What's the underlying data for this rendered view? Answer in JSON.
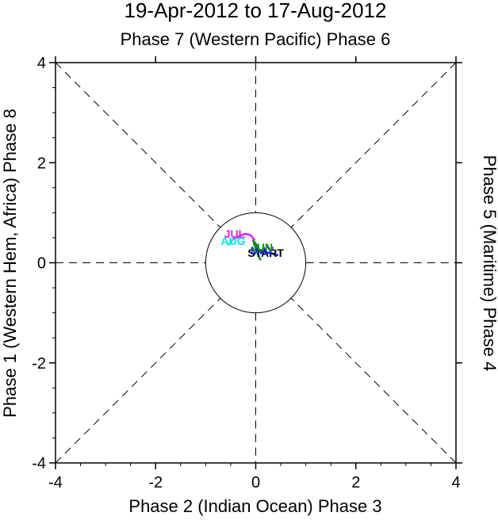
{
  "chart_data": {
    "type": "line",
    "title": "19-Apr-2012 to 17-Aug-2012",
    "top_label": "Phase 7 (Western Pacific) Phase 6",
    "bottom_label": "Phase 2 (Indian Ocean) Phase 3",
    "left_label": "Phase 1 (Western Hem, Africa) Phase 8",
    "right_label": "Phase 5 (Maritime) Phase 4",
    "xlim": [
      -4,
      4
    ],
    "ylim": [
      -4,
      4
    ],
    "x_ticks": [
      -4,
      -2,
      0,
      2,
      4
    ],
    "y_ticks": [
      -4,
      -2,
      0,
      2,
      4
    ],
    "x_tick_labels": [
      "-4",
      "-2",
      "0",
      "2",
      "4"
    ],
    "y_tick_labels": [
      "-4",
      "-2",
      "0",
      "2",
      "4"
    ],
    "unit_circle_radius": 1,
    "grid": "dashed phase-boundary lines",
    "series": [
      {
        "color": "#1a1aff",
        "x": [
          0.45,
          0.35,
          0.25,
          0.15,
          0.1
        ],
        "y": [
          0.15,
          0.18,
          0.2,
          0.22,
          0.2
        ]
      },
      {
        "color": "#0a8a0a",
        "x": [
          0.1,
          0.05,
          0.0,
          -0.05,
          -0.02,
          0.05,
          0.1
        ],
        "y": [
          0.2,
          0.3,
          0.38,
          0.45,
          0.35,
          0.15,
          0.05
        ]
      },
      {
        "color": "#e020e0",
        "x": [
          -0.02,
          -0.1,
          -0.2,
          -0.3,
          -0.38,
          -0.45
        ],
        "y": [
          0.45,
          0.55,
          0.58,
          0.55,
          0.5,
          0.48
        ]
      },
      {
        "color": "#00e5ee",
        "x": [
          -0.45,
          -0.5,
          -0.55
        ],
        "y": [
          0.48,
          0.4,
          0.35
        ]
      }
    ],
    "annotations": [
      {
        "text": "START",
        "x": 0.2,
        "y": 0.12,
        "color": "#000000"
      },
      {
        "text": "MAY",
        "x": 0.13,
        "y": 0.17,
        "color": "#1a1aff"
      },
      {
        "text": "JUN",
        "x": 0.12,
        "y": 0.23,
        "color": "#0a8a0a"
      },
      {
        "text": "JUL",
        "x": -0.42,
        "y": 0.5,
        "color": "#e020e0"
      },
      {
        "text": "AUG",
        "x": -0.45,
        "y": 0.36,
        "color": "#00e5ee"
      }
    ]
  }
}
